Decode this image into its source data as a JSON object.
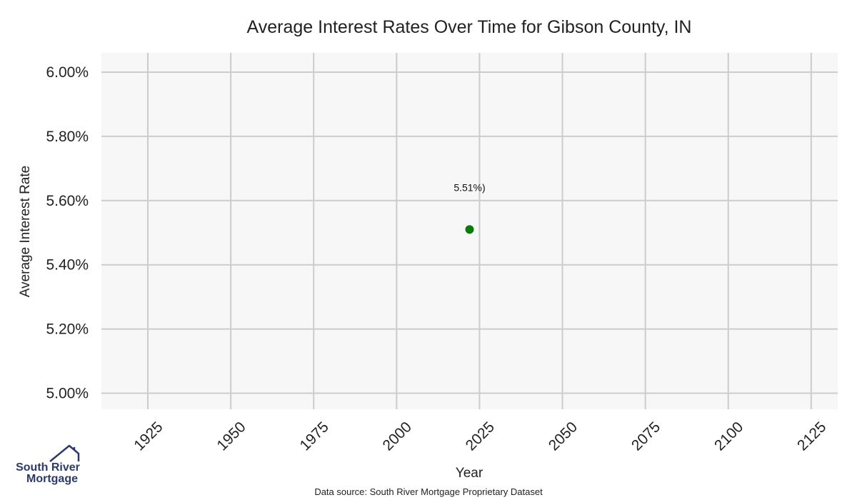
{
  "chart_data": {
    "type": "scatter",
    "title": "Average Interest Rates Over Time for Gibson County, IN",
    "xlabel": "Year",
    "ylabel": "Average Interest Rate",
    "xlim": [
      1911,
      2133
    ],
    "ylim": [
      4.95,
      6.06
    ],
    "x_ticks": [
      1925,
      1950,
      1975,
      2000,
      2025,
      2050,
      2075,
      2100,
      2125
    ],
    "y_ticks": [
      5.0,
      5.2,
      5.4,
      5.6,
      5.8,
      6.0
    ],
    "y_tick_labels": [
      "5.00%",
      "5.20%",
      "5.40%",
      "5.60%",
      "5.80%",
      "6.00%"
    ],
    "grid": true,
    "points": [
      {
        "x": 2022,
        "y": 5.51,
        "label": "5.51%)"
      }
    ],
    "point_color": "#0a7a0a",
    "source": "Data source: South River Mortgage Proprietary Dataset"
  },
  "logo": {
    "line1": "South River",
    "line2": "Mortgage",
    "color": "#2b3a6b"
  }
}
